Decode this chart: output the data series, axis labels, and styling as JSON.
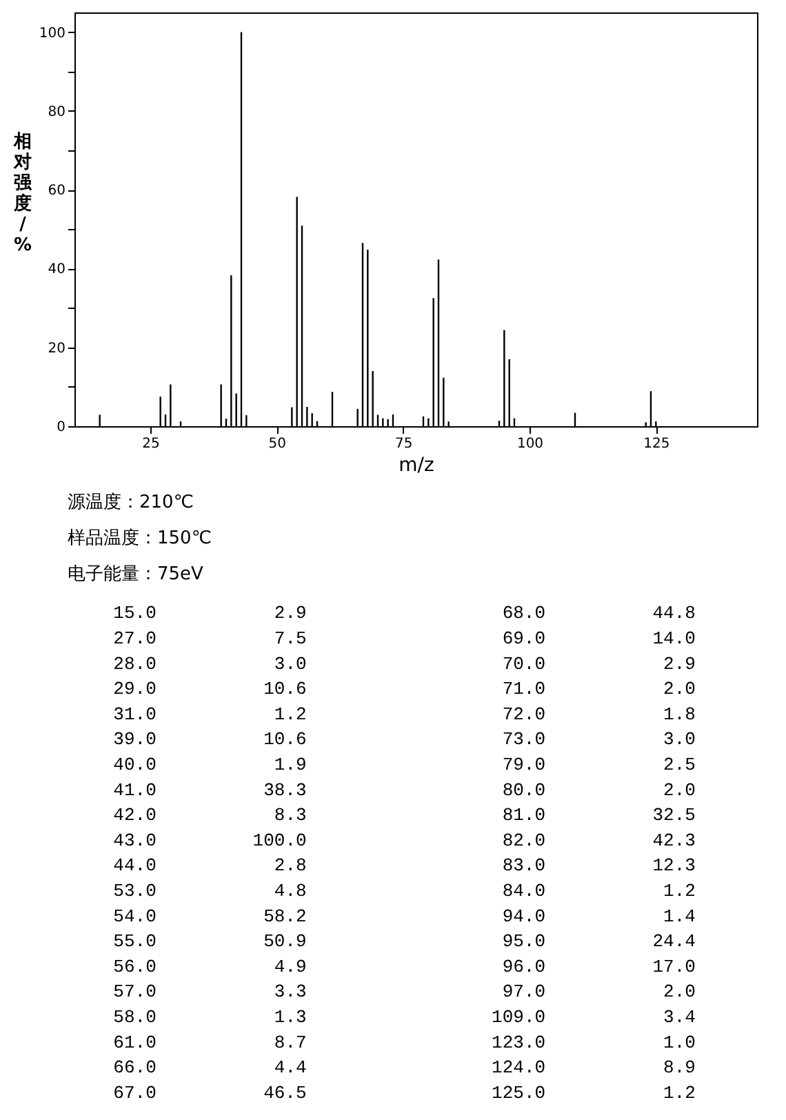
{
  "chart_data": [
    {
      "type": "bar",
      "xlabel": "m/z",
      "ylabel": "相对强度/%",
      "x": [
        15,
        27,
        28,
        29,
        31,
        39,
        40,
        41,
        42,
        43,
        44,
        53,
        54,
        55,
        56,
        57,
        58,
        61,
        66,
        67,
        68,
        69,
        70,
        71,
        72,
        73,
        79,
        80,
        81,
        82,
        83,
        84,
        94,
        95,
        96,
        97,
        109,
        123,
        124,
        125
      ],
      "values": [
        2.9,
        7.5,
        3.0,
        10.6,
        1.2,
        10.6,
        1.9,
        38.3,
        8.3,
        100.0,
        2.8,
        4.8,
        58.2,
        50.9,
        4.9,
        3.3,
        1.3,
        8.7,
        4.4,
        46.5,
        44.8,
        14.0,
        2.9,
        2.0,
        1.8,
        3.0,
        2.5,
        2.0,
        32.5,
        42.3,
        12.3,
        1.2,
        1.4,
        24.4,
        17.0,
        2.0,
        3.4,
        1.0,
        8.9,
        1.2
      ],
      "color": "#000000",
      "xlim": [
        10,
        145
      ],
      "xticks": [
        25,
        50,
        75,
        100,
        125
      ],
      "ylim": [
        0,
        105
      ],
      "yticks": [
        0,
        {
          "value": 10,
          "label": null
        },
        20,
        {
          "value": 30,
          "label": null
        },
        40,
        {
          "value": 50,
          "label": null
        },
        60,
        {
          "value": 70,
          "label": null
        },
        80,
        {
          "value": 90,
          "label": null
        },
        100
      ],
      "grid": false,
      "annotations": [
        "源温度：210℃",
        "样品温度：150℃",
        "电子能量：75eV"
      ]
    },
    {
      "type": "other",
      "annotations": [
        "15.0",
        "27.0",
        "28.0",
        "29.0",
        "31.0",
        "39.0",
        "40.0",
        "41.0",
        "42.0",
        "43.0",
        "44.0",
        "53.0",
        "54.0",
        "55.0",
        "56.0",
        "57.0",
        "58.0",
        "61.0",
        "66.0",
        "67.0",
        "2.9",
        "7.5",
        "3.0",
        "10.6",
        "1.2",
        "10.6",
        "1.9",
        "38.3",
        "8.3",
        "100.0",
        "2.8",
        "4.8",
        "58.2",
        "50.9",
        "4.9",
        "3.3",
        "1.3",
        "8.7",
        "4.4",
        "46.5",
        "68.0",
        "69.0",
        "70.0",
        "71.0",
        "72.0",
        "73.0",
        "79.0",
        "80.0",
        "81.0",
        "82.0",
        "83.0",
        "84.0",
        "94.0",
        "95.0",
        "96.0",
        "97.0",
        "109.0",
        "123.0",
        "124.0",
        "125.0",
        "44.8",
        "14.0",
        "2.9",
        "2.0",
        "1.8",
        "3.0",
        "2.5",
        "2.0",
        "32.5",
        "42.3",
        "12.3",
        "1.2",
        "1.4",
        "24.4",
        "17.0",
        "2.0",
        "3.4",
        "1.0",
        "8.9",
        "1.2"
      ]
    }
  ]
}
